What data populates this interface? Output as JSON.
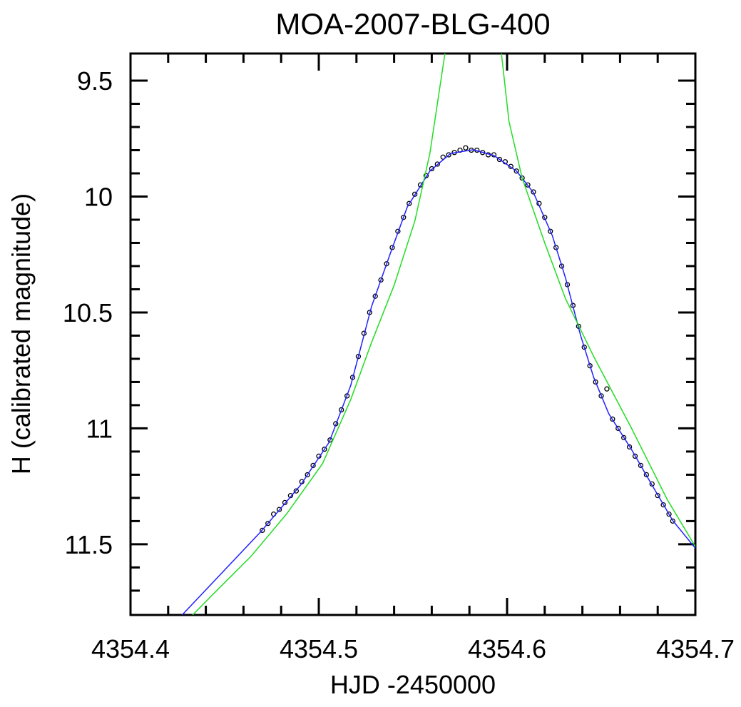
{
  "chart_data": {
    "type": "scatter",
    "title": "MOA-2007-BLG-400",
    "xlabel": "HJD -2450000",
    "ylabel": "H (calibrated magnitude)",
    "xlim": [
      4354.4,
      4354.7
    ],
    "ylim": [
      9.383,
      11.805
    ],
    "y_inverted": true,
    "xticks": [
      4354.4,
      4354.5,
      4354.6,
      4354.7
    ],
    "yticks": [
      9.5,
      10,
      10.5,
      11,
      11.5
    ],
    "xminorticks": [
      4354.42,
      4354.44,
      4354.46,
      4354.48,
      4354.52,
      4354.54,
      4354.56,
      4354.58,
      4354.62,
      4354.64,
      4354.66,
      4354.68
    ],
    "yminorticks": [
      9.6,
      9.7,
      9.8,
      9.9,
      10.1,
      10.2,
      10.3,
      10.4,
      10.6,
      10.7,
      10.8,
      10.9,
      11.1,
      11.2,
      11.3,
      11.4,
      11.6,
      11.7
    ],
    "series": [
      {
        "color": "#000000",
        "marker": "circle",
        "x": [
          4354.47,
          4354.473,
          4354.476,
          4354.479,
          4354.482,
          4354.485,
          4354.488,
          4354.491,
          4354.494,
          4354.497,
          4354.5,
          4354.503,
          4354.506,
          4354.509,
          4354.512,
          4354.515,
          4354.518,
          4354.521,
          4354.524,
          4354.527,
          4354.53,
          4354.533,
          4354.536,
          4354.539,
          4354.542,
          4354.545,
          4354.548,
          4354.551,
          4354.554,
          4354.557,
          4354.56,
          4354.563,
          4354.566,
          4354.569,
          4354.572,
          4354.575,
          4354.578,
          4354.581,
          4354.584,
          4354.587,
          4354.59,
          4354.593,
          4354.596,
          4354.599,
          4354.602,
          4354.605,
          4354.608,
          4354.611,
          4354.614,
          4354.617,
          4354.62,
          4354.623,
          4354.626,
          4354.629,
          4354.632,
          4354.635,
          4354.638,
          4354.641,
          4354.644,
          4354.647,
          4354.65,
          4354.653,
          4354.656,
          4354.659,
          4354.662,
          4354.665,
          4354.668,
          4354.671,
          4354.674,
          4354.677,
          4354.68,
          4354.683,
          4354.686,
          4354.688
        ],
        "values": [
          11.44,
          11.41,
          11.37,
          11.35,
          11.32,
          11.29,
          11.27,
          11.23,
          11.2,
          11.16,
          11.12,
          11.09,
          11.05,
          10.98,
          10.92,
          10.86,
          10.78,
          10.69,
          10.59,
          10.5,
          10.43,
          10.36,
          10.29,
          10.22,
          10.15,
          10.09,
          10.03,
          9.99,
          9.95,
          9.91,
          9.88,
          9.86,
          9.83,
          9.82,
          9.81,
          9.8,
          9.79,
          9.8,
          9.8,
          9.81,
          9.82,
          9.82,
          9.84,
          9.85,
          9.87,
          9.89,
          9.92,
          9.95,
          9.98,
          10.03,
          10.09,
          10.15,
          10.22,
          10.3,
          10.38,
          10.47,
          10.56,
          10.65,
          10.73,
          10.8,
          10.86,
          10.83,
          10.96,
          11.0,
          11.04,
          11.08,
          11.12,
          11.16,
          11.2,
          11.24,
          11.29,
          11.33,
          11.37,
          11.4
        ]
      },
      {
        "color": "#2020ff",
        "marker": "line",
        "x": [
          4354.4274,
          4354.4693,
          4354.4903,
          4354.5055,
          4354.517,
          4354.528,
          4354.538,
          4354.547,
          4354.559,
          4354.57,
          4354.582,
          4354.593,
          4354.605,
          4354.614,
          4354.624,
          4354.631,
          4354.639,
          4354.646,
          4354.654,
          4354.666,
          4354.677,
          4354.688,
          4354.702
        ],
        "values": [
          11.805,
          11.445,
          11.245,
          11.06,
          10.814,
          10.475,
          10.245,
          10.045,
          9.89,
          9.814,
          9.798,
          9.823,
          9.89,
          9.983,
          10.168,
          10.35,
          10.598,
          10.78,
          10.937,
          11.09,
          11.245,
          11.398,
          11.537
        ]
      },
      {
        "color": "#22dd22",
        "marker": "line",
        "x": [
          4354.433,
          4354.445,
          4354.464,
          4354.483,
          4354.502,
          4354.517,
          4354.528,
          4354.54,
          4354.551,
          4354.559,
          4354.567,
          4354.582,
          4354.597,
          4354.601,
          4354.608,
          4354.62,
          4354.631,
          4354.646,
          4354.666,
          4354.685,
          4354.702
        ],
        "values": [
          11.805,
          11.706,
          11.552,
          11.368,
          11.152,
          10.875,
          10.63,
          10.383,
          10.106,
          9.814,
          9.383,
          null,
          9.383,
          9.675,
          9.92,
          10.2,
          10.44,
          10.69,
          10.998,
          11.306,
          11.537
        ]
      }
    ]
  }
}
